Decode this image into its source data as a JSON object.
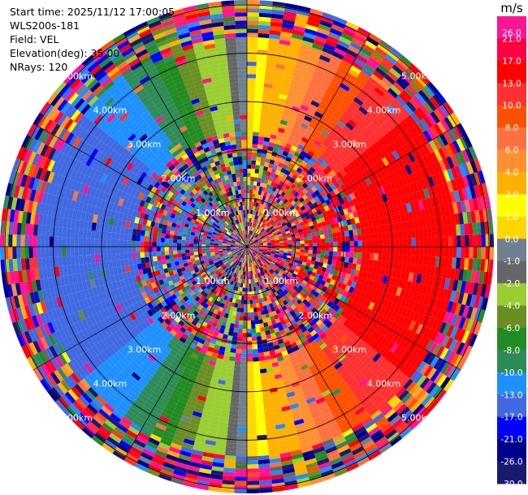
{
  "info": {
    "start_time": "Start time: 2025/11/12 17:00:05",
    "instrument": "WLS200s-181",
    "field": "Field: VEL",
    "elevation": "Elevation(deg): 35.00",
    "nrays": "NRays: 120"
  },
  "colorbar": {
    "unit": "m/s",
    "ticks": [
      "26.0",
      "21.0",
      "17.0",
      "13.0",
      "10.0",
      "8.0",
      "6.0",
      "4.0",
      "2.0",
      "1.0",
      "0.0",
      "-1.0",
      "-2.0",
      "-4.0",
      "-6.0",
      "-8.0",
      "-10.0",
      "-13.0",
      "-17.0",
      "-21.0",
      "-26.0",
      "-30.0"
    ],
    "colors": [
      "#ff1493",
      "#ff0040",
      "#ff0000",
      "#ff3030",
      "#ff5000",
      "#ff7040",
      "#ff9030",
      "#ffb000",
      "#ffff00",
      "#ffd700",
      "#708090",
      "#666666",
      "#9acd32",
      "#6b8e23",
      "#228b22",
      "#2e8b57",
      "#1e90ff",
      "#4169e1",
      "#0000ff",
      "#00008b",
      "#191970"
    ]
  },
  "chart_data": {
    "type": "heatmap",
    "projection": "polar PPI",
    "field": "VEL",
    "units": "m/s",
    "elevation_deg": 35.0,
    "n_rays": 120,
    "range_rings_km": [
      1.0,
      2.0,
      3.0,
      4.0,
      5.0
    ],
    "ring_labels": [
      "1.00km",
      "2.00km",
      "3.00km",
      "4.00km",
      "5.00km"
    ],
    "max_range_km": 5.1,
    "wind_pattern": {
      "approaching_sector_azimuth_deg": 270,
      "receding_sector_azimuth_deg": 90,
      "max_abs_velocity_ms": 17,
      "valid_range_km": [
        2.4,
        4.3
      ],
      "noise_beyond_km": 4.3
    }
  }
}
